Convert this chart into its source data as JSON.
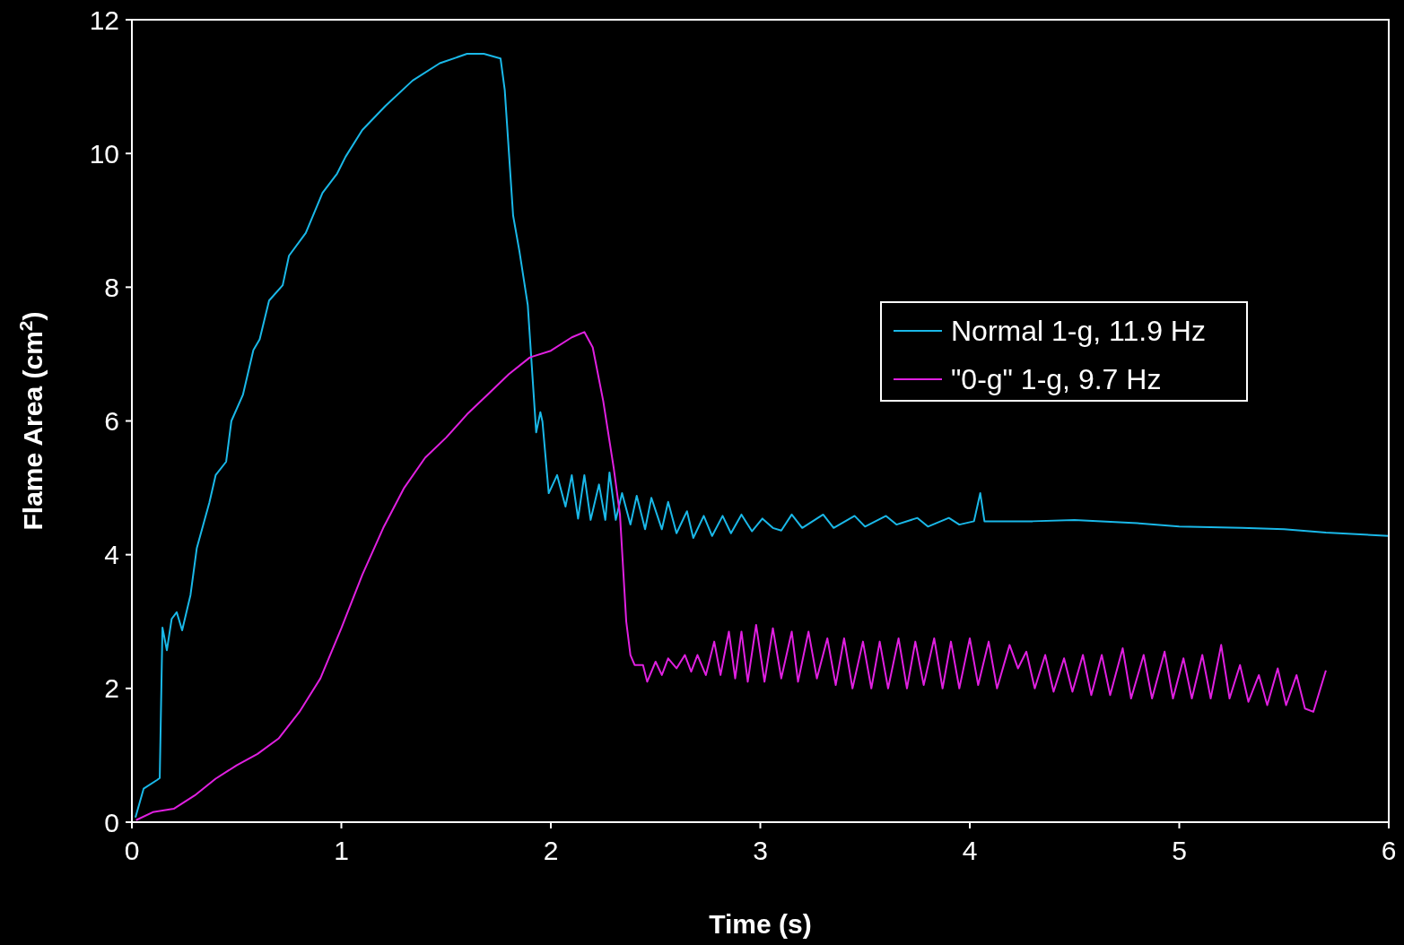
{
  "chart_data": {
    "type": "line",
    "xlabel": "Time (s)",
    "ylabel": "Flame Area (cm$^{2}$)",
    "xlim": [
      0,
      6
    ],
    "ylim": [
      0,
      12
    ],
    "xticks": [
      0,
      1,
      2,
      3,
      4,
      5,
      6
    ],
    "yticks": [
      0,
      2,
      4,
      6,
      8,
      10,
      12
    ],
    "grid": false,
    "legend": "right",
    "marker": "none",
    "line_style": "solid",
    "series": [
      {
        "name": "Normal 1-g, 11.9 Hz",
        "color": "#1ab8e8",
        "x": [
          0.017,
          0.056,
          0.12,
          0.133,
          0.146,
          0.167,
          0.19,
          0.214,
          0.24,
          0.28,
          0.31,
          0.37,
          0.4,
          0.45,
          0.475,
          0.53,
          0.58,
          0.61,
          0.655,
          0.72,
          0.75,
          0.83,
          0.91,
          0.98,
          1.02,
          1.1,
          1.21,
          1.34,
          1.47,
          1.6,
          1.68,
          1.76,
          1.78,
          1.82,
          1.85,
          1.89,
          1.93,
          1.95,
          1.96,
          1.99,
          2.03,
          2.07,
          2.1,
          2.13,
          2.16,
          2.19,
          2.23,
          2.26,
          2.28,
          2.31,
          2.34,
          2.38,
          2.41,
          2.45,
          2.48,
          2.53,
          2.56,
          2.6,
          2.65,
          2.68,
          2.73,
          2.77,
          2.82,
          2.86,
          2.91,
          2.96,
          3.01,
          3.06,
          3.1,
          3.15,
          3.2,
          3.3,
          3.35,
          3.45,
          3.5,
          3.6,
          3.65,
          3.75,
          3.8,
          3.9,
          3.95,
          4.02,
          4.05,
          4.07,
          4.3,
          4.5,
          4.8,
          5.0,
          5.3,
          5.5,
          5.7,
          6.0
        ],
        "values": [
          0.07,
          0.5,
          0.63,
          0.66,
          2.91,
          2.57,
          3.04,
          3.14,
          2.87,
          3.4,
          4.1,
          4.78,
          5.19,
          5.39,
          6.0,
          6.39,
          7.06,
          7.22,
          7.8,
          8.03,
          8.47,
          8.81,
          9.41,
          9.7,
          9.95,
          10.35,
          10.71,
          11.09,
          11.35,
          11.49,
          11.49,
          11.42,
          10.95,
          9.07,
          8.54,
          7.73,
          5.83,
          6.13,
          5.99,
          4.92,
          5.19,
          4.72,
          5.19,
          4.54,
          5.19,
          4.52,
          5.05,
          4.52,
          5.23,
          4.52,
          4.92,
          4.45,
          4.88,
          4.38,
          4.85,
          4.38,
          4.79,
          4.32,
          4.65,
          4.25,
          4.58,
          4.28,
          4.58,
          4.32,
          4.6,
          4.35,
          4.54,
          4.4,
          4.36,
          4.6,
          4.4,
          4.6,
          4.4,
          4.58,
          4.42,
          4.58,
          4.45,
          4.55,
          4.42,
          4.55,
          4.45,
          4.5,
          4.92,
          4.5,
          4.5,
          4.52,
          4.47,
          4.42,
          4.4,
          4.38,
          4.33,
          4.28
        ]
      },
      {
        "name": "\"0-g\" 1-g, 9.7 Hz",
        "color": "#e020e0",
        "x": [
          0.02,
          0.1,
          0.2,
          0.3,
          0.4,
          0.5,
          0.6,
          0.7,
          0.8,
          0.9,
          1.0,
          1.1,
          1.2,
          1.3,
          1.4,
          1.5,
          1.6,
          1.7,
          1.8,
          1.9,
          2.0,
          2.1,
          2.16,
          2.2,
          2.25,
          2.3,
          2.33,
          2.36,
          2.38,
          2.4,
          2.44,
          2.46,
          2.5,
          2.53,
          2.56,
          2.6,
          2.64,
          2.67,
          2.7,
          2.74,
          2.78,
          2.81,
          2.85,
          2.88,
          2.91,
          2.94,
          2.98,
          3.02,
          3.06,
          3.1,
          3.15,
          3.18,
          3.23,
          3.27,
          3.32,
          3.36,
          3.4,
          3.44,
          3.49,
          3.53,
          3.57,
          3.61,
          3.66,
          3.7,
          3.74,
          3.78,
          3.83,
          3.87,
          3.91,
          3.95,
          4.0,
          4.04,
          4.09,
          4.13,
          4.19,
          4.23,
          4.27,
          4.31,
          4.36,
          4.4,
          4.45,
          4.49,
          4.54,
          4.58,
          4.63,
          4.67,
          4.73,
          4.77,
          4.83,
          4.87,
          4.93,
          4.97,
          5.02,
          5.06,
          5.11,
          5.15,
          5.2,
          5.24,
          5.29,
          5.33,
          5.38,
          5.42,
          5.47,
          5.51,
          5.56,
          5.6,
          5.64,
          5.7
        ],
        "values": [
          0.03,
          0.15,
          0.2,
          0.4,
          0.65,
          0.85,
          1.02,
          1.25,
          1.65,
          2.15,
          2.9,
          3.7,
          4.4,
          5.0,
          5.45,
          5.75,
          6.1,
          6.4,
          6.7,
          6.95,
          7.05,
          7.25,
          7.33,
          7.1,
          6.3,
          5.3,
          4.6,
          3.0,
          2.5,
          2.35,
          2.35,
          2.1,
          2.4,
          2.2,
          2.45,
          2.3,
          2.5,
          2.25,
          2.5,
          2.2,
          2.7,
          2.2,
          2.85,
          2.15,
          2.85,
          2.1,
          2.95,
          2.1,
          2.9,
          2.15,
          2.85,
          2.1,
          2.85,
          2.15,
          2.75,
          2.05,
          2.75,
          2.0,
          2.7,
          2.0,
          2.7,
          2.0,
          2.75,
          2.0,
          2.7,
          2.05,
          2.75,
          2.0,
          2.7,
          2.0,
          2.75,
          2.05,
          2.7,
          2.0,
          2.65,
          2.3,
          2.55,
          2.0,
          2.5,
          1.95,
          2.45,
          1.95,
          2.5,
          1.9,
          2.5,
          1.9,
          2.6,
          1.85,
          2.5,
          1.85,
          2.55,
          1.85,
          2.45,
          1.85,
          2.5,
          1.85,
          2.65,
          1.85,
          2.35,
          1.8,
          2.2,
          1.75,
          2.3,
          1.75,
          2.2,
          1.7,
          1.65,
          2.27
        ]
      }
    ]
  }
}
